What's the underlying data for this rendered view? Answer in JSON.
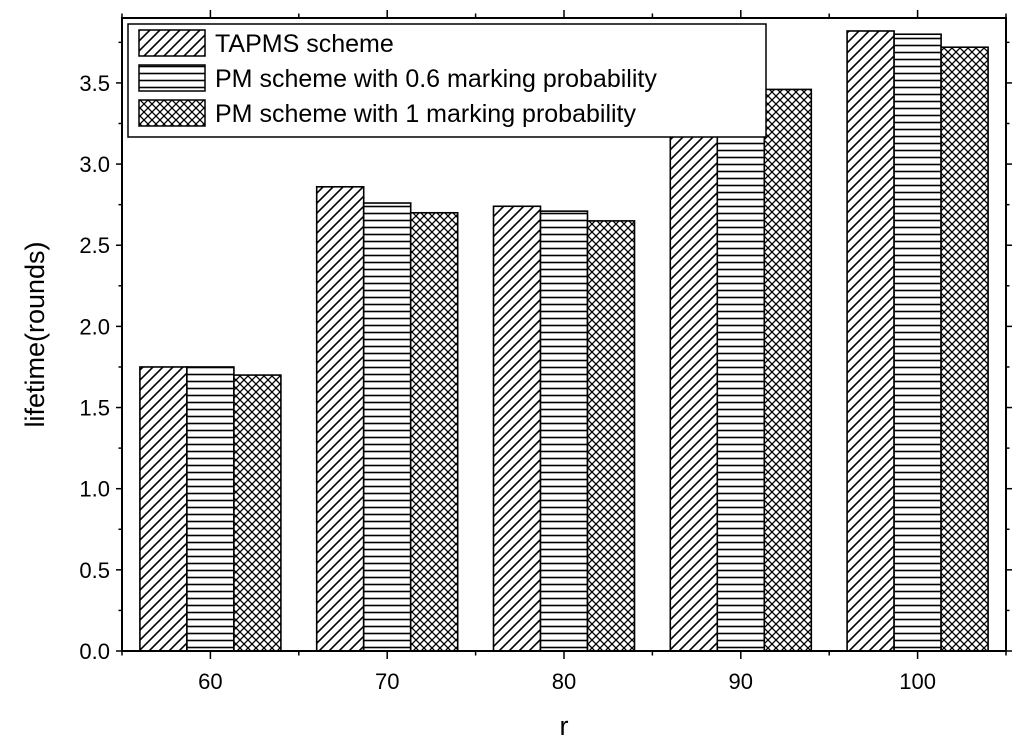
{
  "chart_data": {
    "type": "bar",
    "xlabel": "r",
    "ylabel": "lifetime(rounds)",
    "categories": [
      "60",
      "70",
      "80",
      "90",
      "100"
    ],
    "ylim": [
      0,
      3.9
    ],
    "yticks": [
      "0.0",
      "0.5",
      "1.0",
      "1.5",
      "2.0",
      "2.5",
      "3.0",
      "3.5"
    ],
    "grid": false,
    "legend_position": "top-left",
    "series": [
      {
        "name": "TAPMS scheme",
        "pattern": "diagonal-hatch",
        "values": [
          1.75,
          2.86,
          2.74,
          3.25,
          3.82
        ]
      },
      {
        "name": "PM scheme with 0.6 marking probability",
        "pattern": "horizontal-lines",
        "values": [
          1.75,
          2.76,
          2.71,
          3.18,
          3.8
        ]
      },
      {
        "name": "PM scheme with 1 marking probability",
        "pattern": "crosshatch",
        "values": [
          1.7,
          2.7,
          2.65,
          3.46,
          3.72
        ]
      }
    ]
  }
}
